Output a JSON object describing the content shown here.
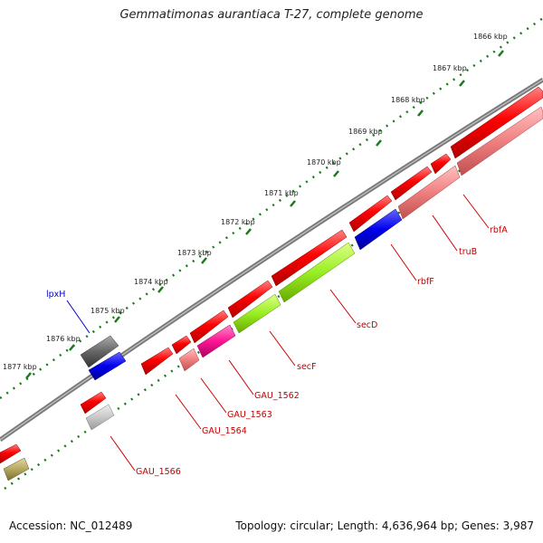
{
  "title": "Gemmatimonas aurantiaca T-27, complete genome",
  "footer": {
    "accession": "Accession: NC_012489",
    "topology": "Topology: circular; Length: 4,636,964 bp; Genes: 3,987"
  },
  "ruler_ticks": [
    "1866 kbp",
    "1867 kbp",
    "1868 kbp",
    "1869 kbp",
    "1870 kbp",
    "1871 kbp",
    "1872 kbp",
    "1873 kbp",
    "1874 kbp",
    "1875 kbp",
    "1876 kbp",
    "1877 kbp"
  ],
  "genes": [
    {
      "name": "rbfA",
      "color": "#c00000",
      "strand": "forward"
    },
    {
      "name": "truB",
      "color": "#c00000",
      "strand": "forward"
    },
    {
      "name": "rbfF",
      "color": "#c00000",
      "strand": "forward"
    },
    {
      "name": "secD",
      "color": "#c00000",
      "strand": "forward"
    },
    {
      "name": "secF",
      "color": "#c00000",
      "strand": "forward"
    },
    {
      "name": "GAU_1562",
      "color": "#c00000",
      "strand": "forward"
    },
    {
      "name": "GAU_1563",
      "color": "#c00000",
      "strand": "forward"
    },
    {
      "name": "GAU_1564",
      "color": "#c00000",
      "strand": "forward"
    },
    {
      "name": "GAU_1566",
      "color": "#c00000",
      "strand": "forward"
    },
    {
      "name": "lpxH",
      "color": "#0000cc",
      "strand": "reverse"
    }
  ],
  "colors": {
    "cds_forward": "#ff0000",
    "gene_pink": "#f08080",
    "gene_blue": "#0000ee",
    "gene_lime": "#99ee22",
    "gene_magenta": "#ff1493",
    "gene_dark": "#666666",
    "gene_light_gray": "#c8c8c8",
    "gene_olive": "#b5a860",
    "backbone": "#808080",
    "tick_green": "#1a7a1a"
  }
}
